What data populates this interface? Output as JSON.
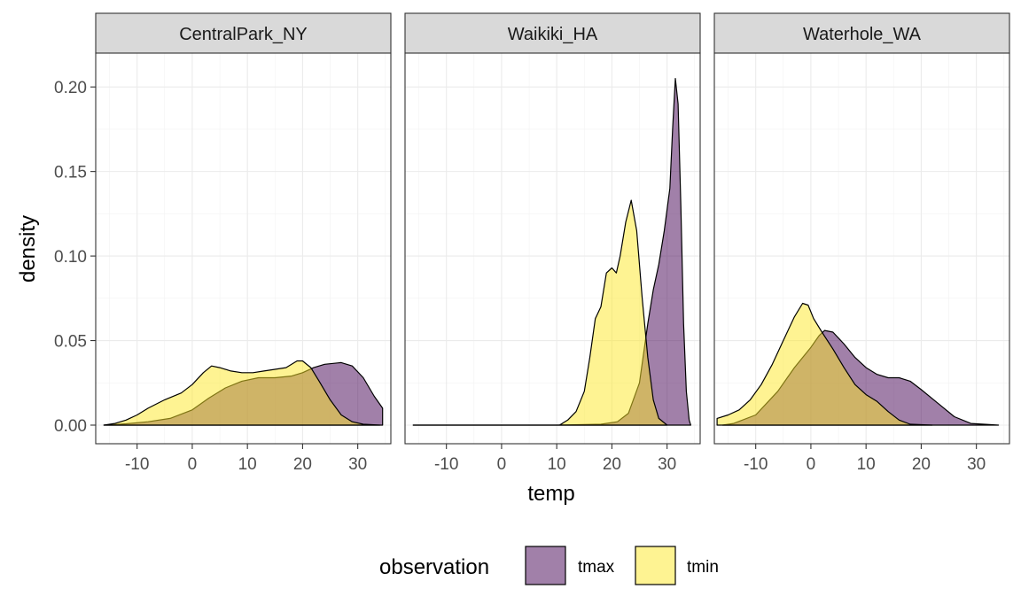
{
  "chart_data": {
    "type": "area",
    "xlabel": "temp",
    "ylabel": "density",
    "xlim": [
      -17.5,
      36
    ],
    "ylim": [
      -0.011,
      0.22
    ],
    "x_ticks": [
      -10,
      0,
      10,
      20,
      30
    ],
    "y_ticks": [
      0.0,
      0.05,
      0.1,
      0.15,
      0.2
    ],
    "y_tick_labels": [
      "0.00",
      "0.05",
      "0.10",
      "0.15",
      "0.20"
    ],
    "grid": true,
    "legend": {
      "title": "observation",
      "position": "bottom",
      "entries": [
        {
          "label": "tmax",
          "color": "#440154"
        },
        {
          "label": "tmin",
          "color": "#FDE725"
        }
      ]
    },
    "panels": [
      {
        "name": "CentralPark_NY",
        "series": [
          {
            "name": "tmax",
            "color": "#440154",
            "points": [
              [
                -16,
                0
              ],
              [
                -12,
                0.0008
              ],
              [
                -8,
                0.002
              ],
              [
                -4,
                0.004
              ],
              [
                0,
                0.009
              ],
              [
                3,
                0.016
              ],
              [
                6,
                0.022
              ],
              [
                9,
                0.026
              ],
              [
                12,
                0.028
              ],
              [
                15,
                0.028
              ],
              [
                18,
                0.029
              ],
              [
                20,
                0.031
              ],
              [
                22,
                0.034
              ],
              [
                24,
                0.036
              ],
              [
                27,
                0.037
              ],
              [
                29,
                0.035
              ],
              [
                31,
                0.028
              ],
              [
                33,
                0.017
              ],
              [
                34.5,
                0.01
              ],
              [
                34.5,
                0
              ]
            ]
          },
          {
            "name": "tmin",
            "color": "#FDE725",
            "points": [
              [
                -16,
                0
              ],
              [
                -14,
                0.001
              ],
              [
                -12,
                0.003
              ],
              [
                -10,
                0.006
              ],
              [
                -8,
                0.01
              ],
              [
                -5,
                0.015
              ],
              [
                -2,
                0.019
              ],
              [
                0,
                0.024
              ],
              [
                2,
                0.031
              ],
              [
                3.5,
                0.035
              ],
              [
                5,
                0.034
              ],
              [
                7,
                0.032
              ],
              [
                9,
                0.031
              ],
              [
                11,
                0.031
              ],
              [
                13,
                0.032
              ],
              [
                15,
                0.033
              ],
              [
                17,
                0.034
              ],
              [
                19,
                0.038
              ],
              [
                20,
                0.038
              ],
              [
                21.5,
                0.034
              ],
              [
                23,
                0.026
              ],
              [
                25,
                0.015
              ],
              [
                27,
                0.006
              ],
              [
                29,
                0.002
              ],
              [
                31,
                0.0005
              ],
              [
                34,
                0
              ]
            ]
          }
        ]
      },
      {
        "name": "Waikiki_HA",
        "series": [
          {
            "name": "tmax",
            "color": "#440154",
            "points": [
              [
                -16,
                0
              ],
              [
                10,
                0
              ],
              [
                18,
                0.0005
              ],
              [
                21,
                0.002
              ],
              [
                23,
                0.007
              ],
              [
                25,
                0.025
              ],
              [
                26.5,
                0.06
              ],
              [
                27.5,
                0.08
              ],
              [
                28.5,
                0.095
              ],
              [
                29.5,
                0.115
              ],
              [
                30.5,
                0.14
              ],
              [
                31,
                0.175
              ],
              [
                31.5,
                0.205
              ],
              [
                32,
                0.19
              ],
              [
                32.5,
                0.13
              ],
              [
                33,
                0.06
              ],
              [
                33.5,
                0.02
              ],
              [
                34,
                0.003
              ],
              [
                34.3,
                0
              ]
            ]
          },
          {
            "name": "tmin",
            "color": "#FDE725",
            "points": [
              [
                -16,
                0
              ],
              [
                10.5,
                0
              ],
              [
                12,
                0.003
              ],
              [
                13.5,
                0.008
              ],
              [
                15,
                0.02
              ],
              [
                16,
                0.04
              ],
              [
                17,
                0.063
              ],
              [
                18,
                0.07
              ],
              [
                19,
                0.09
              ],
              [
                20,
                0.093
              ],
              [
                20.8,
                0.09
              ],
              [
                21.5,
                0.1
              ],
              [
                22.5,
                0.12
              ],
              [
                23.5,
                0.133
              ],
              [
                24.5,
                0.115
              ],
              [
                25.5,
                0.075
              ],
              [
                26.5,
                0.04
              ],
              [
                27.5,
                0.015
              ],
              [
                28.5,
                0.004
              ],
              [
                30,
                0
              ]
            ]
          }
        ]
      },
      {
        "name": "Waterhole_WA",
        "series": [
          {
            "name": "tmax",
            "color": "#440154",
            "points": [
              [
                -16,
                0
              ],
              [
                -14,
                0.001
              ],
              [
                -10,
                0.006
              ],
              [
                -6,
                0.02
              ],
              [
                -3,
                0.034
              ],
              [
                0,
                0.046
              ],
              [
                1.5,
                0.053
              ],
              [
                2.5,
                0.056
              ],
              [
                4,
                0.055
              ],
              [
                6,
                0.048
              ],
              [
                8,
                0.04
              ],
              [
                10,
                0.034
              ],
              [
                12,
                0.03
              ],
              [
                14,
                0.028
              ],
              [
                16,
                0.028
              ],
              [
                18,
                0.026
              ],
              [
                20,
                0.021
              ],
              [
                23,
                0.013
              ],
              [
                26,
                0.005
              ],
              [
                29,
                0.001
              ],
              [
                34,
                0
              ]
            ]
          },
          {
            "name": "tmin",
            "color": "#FDE725",
            "points": [
              [
                -17,
                0.004
              ],
              [
                -15,
                0.006
              ],
              [
                -13,
                0.009
              ],
              [
                -11,
                0.015
              ],
              [
                -9,
                0.024
              ],
              [
                -7,
                0.036
              ],
              [
                -5,
                0.05
              ],
              [
                -3,
                0.064
              ],
              [
                -1.5,
                0.072
              ],
              [
                -0.5,
                0.071
              ],
              [
                0.5,
                0.063
              ],
              [
                2,
                0.055
              ],
              [
                4,
                0.045
              ],
              [
                6,
                0.034
              ],
              [
                8,
                0.024
              ],
              [
                10,
                0.018
              ],
              [
                12,
                0.014
              ],
              [
                14,
                0.008
              ],
              [
                16,
                0.003
              ],
              [
                18,
                0.0005
              ],
              [
                22,
                0
              ]
            ]
          }
        ]
      }
    ]
  }
}
